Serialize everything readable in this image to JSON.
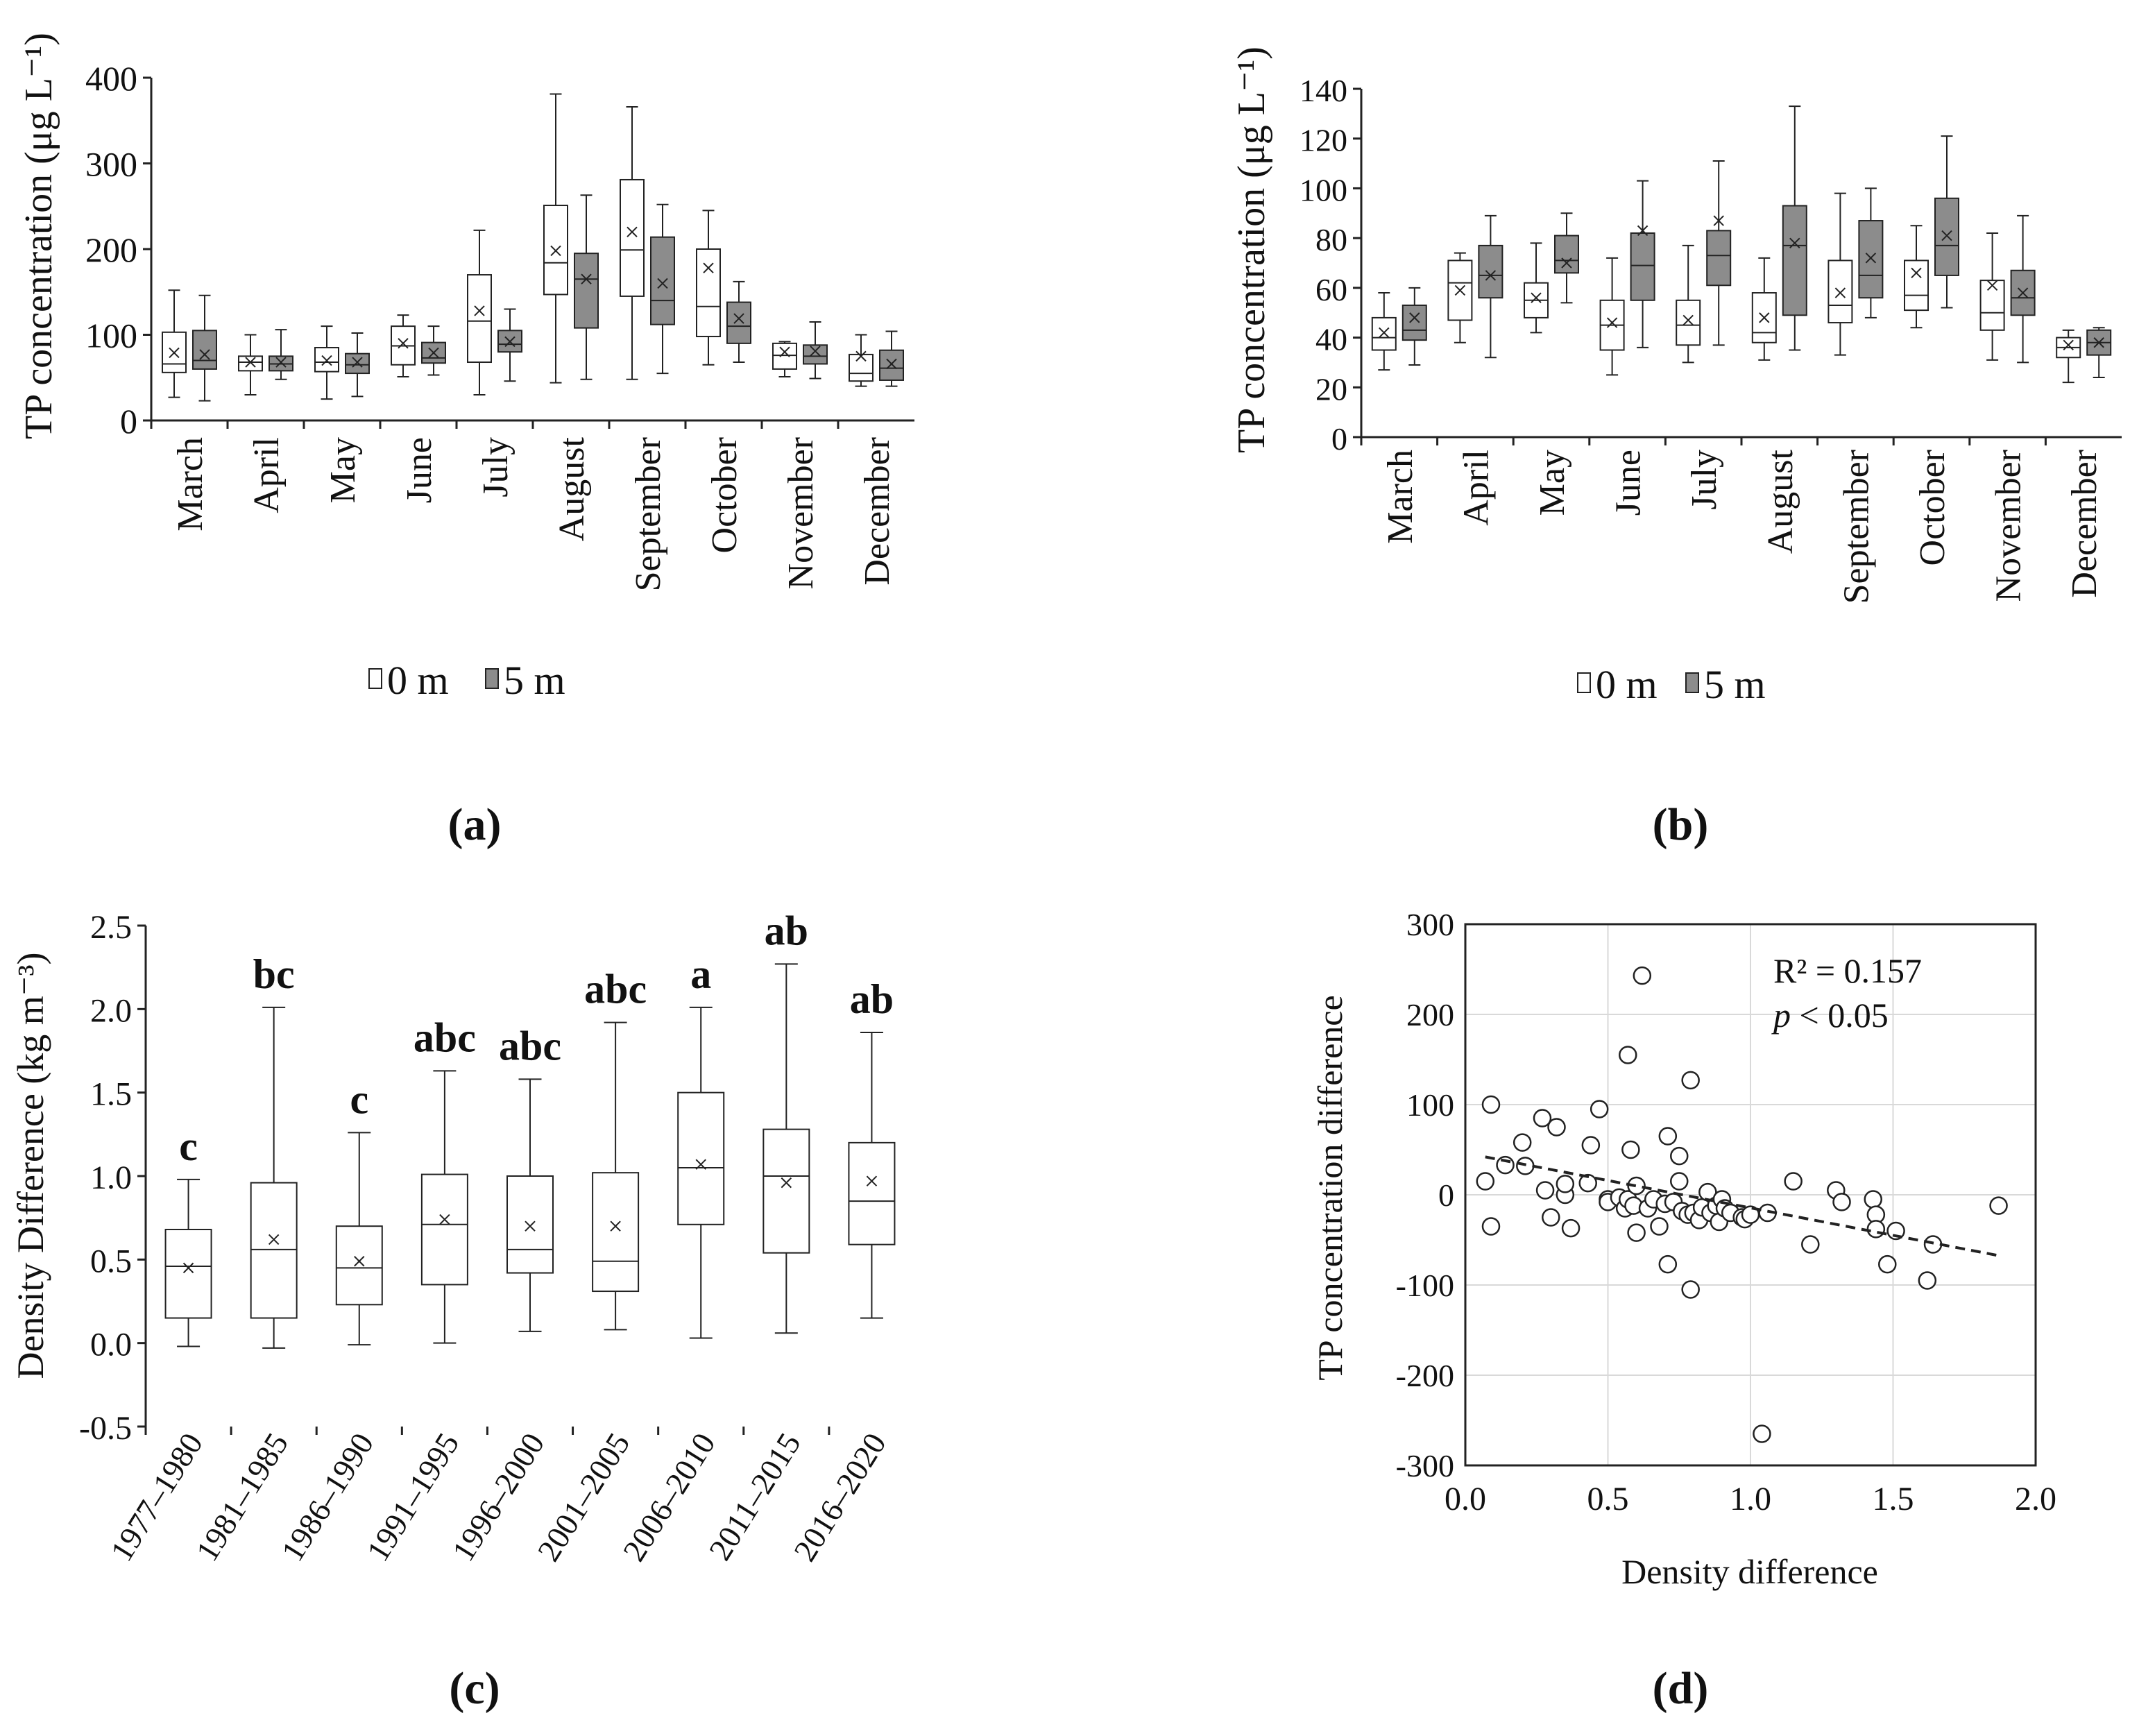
{
  "colors": {
    "box_white": "#ffffff",
    "box_gray": "#8c8c8c",
    "axis": "#222222",
    "grid": "#d9d9d9"
  },
  "chart_data": [
    {
      "id": "a",
      "type": "box",
      "panel_label": "(a)",
      "ylabel": "TP concentration (μg L⁻¹)",
      "ylim": [
        0,
        400
      ],
      "yticks": [
        0,
        100,
        200,
        300,
        400
      ],
      "categories": [
        "March",
        "April",
        "May",
        "June",
        "July",
        "August",
        "September",
        "October",
        "November",
        "December"
      ],
      "legend": [
        {
          "name": "0 m",
          "fill": "white"
        },
        {
          "name": "5 m",
          "fill": "gray"
        }
      ],
      "series": [
        {
          "name": "0 m",
          "boxes": [
            {
              "min": 27,
              "q1": 56,
              "median": 66,
              "q3": 103,
              "max": 152,
              "mean": 79
            },
            {
              "min": 30,
              "q1": 58,
              "median": 68,
              "q3": 75,
              "max": 100,
              "mean": 68
            },
            {
              "min": 25,
              "q1": 57,
              "median": 68,
              "q3": 85,
              "max": 110,
              "mean": 70
            },
            {
              "min": 51,
              "q1": 65,
              "median": 87,
              "q3": 110,
              "max": 123,
              "mean": 90
            },
            {
              "min": 30,
              "q1": 68,
              "median": 116,
              "q3": 170,
              "max": 222,
              "mean": 128
            },
            {
              "min": 44,
              "q1": 147,
              "median": 184,
              "q3": 251,
              "max": 381,
              "mean": 198
            },
            {
              "min": 48,
              "q1": 145,
              "median": 199,
              "q3": 281,
              "max": 366,
              "mean": 220
            },
            {
              "min": 65,
              "q1": 98,
              "median": 133,
              "q3": 200,
              "max": 245,
              "mean": 178
            },
            {
              "min": 51,
              "q1": 60,
              "median": 76,
              "q3": 90,
              "max": 92,
              "mean": 80
            },
            {
              "min": 40,
              "q1": 46,
              "median": 55,
              "q3": 77,
              "max": 100,
              "mean": 75
            }
          ]
        },
        {
          "name": "5 m",
          "boxes": [
            {
              "min": 23,
              "q1": 60,
              "median": 70,
              "q3": 105,
              "max": 146,
              "mean": 77
            },
            {
              "min": 48,
              "q1": 58,
              "median": 66,
              "q3": 75,
              "max": 106,
              "mean": 68
            },
            {
              "min": 28,
              "q1": 55,
              "median": 65,
              "q3": 78,
              "max": 102,
              "mean": 68
            },
            {
              "min": 53,
              "q1": 67,
              "median": 73,
              "q3": 91,
              "max": 110,
              "mean": 79
            },
            {
              "min": 46,
              "q1": 80,
              "median": 89,
              "q3": 105,
              "max": 130,
              "mean": 92
            },
            {
              "min": 48,
              "q1": 108,
              "median": 165,
              "q3": 195,
              "max": 263,
              "mean": 165
            },
            {
              "min": 55,
              "q1": 112,
              "median": 140,
              "q3": 214,
              "max": 252,
              "mean": 160
            },
            {
              "min": 68,
              "q1": 90,
              "median": 110,
              "q3": 138,
              "max": 162,
              "mean": 119
            },
            {
              "min": 49,
              "q1": 66,
              "median": 75,
              "q3": 88,
              "max": 115,
              "mean": 81
            },
            {
              "min": 40,
              "q1": 47,
              "median": 61,
              "q3": 82,
              "max": 104,
              "mean": 66
            }
          ]
        }
      ]
    },
    {
      "id": "b",
      "type": "box",
      "panel_label": "(b)",
      "ylabel": "TP concentration (μg L⁻¹)",
      "ylim": [
        0,
        140
      ],
      "yticks": [
        0,
        20,
        40,
        60,
        80,
        100,
        120,
        140
      ],
      "categories": [
        "March",
        "April",
        "May",
        "June",
        "July",
        "August",
        "September",
        "October",
        "November",
        "December"
      ],
      "legend": [
        {
          "name": "0 m",
          "fill": "white"
        },
        {
          "name": "5 m",
          "fill": "gray"
        }
      ],
      "series": [
        {
          "name": "0 m",
          "boxes": [
            {
              "min": 27,
              "q1": 35,
              "median": 40,
              "q3": 48,
              "max": 58,
              "mean": 42
            },
            {
              "min": 38,
              "q1": 47,
              "median": 62,
              "q3": 71,
              "max": 74,
              "mean": 59
            },
            {
              "min": 42,
              "q1": 48,
              "median": 55,
              "q3": 62,
              "max": 78,
              "mean": 56
            },
            {
              "min": 25,
              "q1": 35,
              "median": 45,
              "q3": 55,
              "max": 72,
              "mean": 46
            },
            {
              "min": 30,
              "q1": 37,
              "median": 45,
              "q3": 55,
              "max": 77,
              "mean": 47
            },
            {
              "min": 31,
              "q1": 38,
              "median": 42,
              "q3": 58,
              "max": 72,
              "mean": 48
            },
            {
              "min": 33,
              "q1": 46,
              "median": 53,
              "q3": 71,
              "max": 98,
              "mean": 58
            },
            {
              "min": 44,
              "q1": 51,
              "median": 57,
              "q3": 71,
              "max": 85,
              "mean": 66
            },
            {
              "min": 31,
              "q1": 43,
              "median": 50,
              "q3": 63,
              "max": 82,
              "mean": 61
            },
            {
              "min": 22,
              "q1": 32,
              "median": 36,
              "q3": 40,
              "max": 43,
              "mean": 37
            }
          ]
        },
        {
          "name": "5 m",
          "boxes": [
            {
              "min": 29,
              "q1": 39,
              "median": 43,
              "q3": 53,
              "max": 60,
              "mean": 48
            },
            {
              "min": 32,
              "q1": 56,
              "median": 65,
              "q3": 77,
              "max": 89,
              "mean": 65
            },
            {
              "min": 54,
              "q1": 66,
              "median": 71,
              "q3": 81,
              "max": 90,
              "mean": 70
            },
            {
              "min": 36,
              "q1": 55,
              "median": 69,
              "q3": 82,
              "max": 103,
              "mean": 83
            },
            {
              "min": 37,
              "q1": 61,
              "median": 73,
              "q3": 83,
              "max": 111,
              "mean": 87
            },
            {
              "min": 35,
              "q1": 49,
              "median": 77,
              "q3": 93,
              "max": 133,
              "mean": 78
            },
            {
              "min": 48,
              "q1": 56,
              "median": 65,
              "q3": 87,
              "max": 100,
              "mean": 72
            },
            {
              "min": 52,
              "q1": 65,
              "median": 77,
              "q3": 96,
              "max": 121,
              "mean": 81
            },
            {
              "min": 30,
              "q1": 49,
              "median": 56,
              "q3": 67,
              "max": 89,
              "mean": 58
            },
            {
              "min": 24,
              "q1": 33,
              "median": 38,
              "q3": 43,
              "max": 44,
              "mean": 38
            }
          ]
        }
      ]
    },
    {
      "id": "c",
      "type": "box",
      "panel_label": "(c)",
      "ylabel": "Density Difference (kg m⁻³)",
      "ylim": [
        -0.5,
        2.5
      ],
      "yticks": [
        -0.5,
        0.0,
        0.5,
        1.0,
        1.5,
        2.0,
        2.5
      ],
      "ytick_labels": [
        "-0.5",
        "0.0",
        "0.5",
        "1.0",
        "1.5",
        "2.0",
        "2.5"
      ],
      "categories": [
        "1977–1980",
        "1981–1985",
        "1986–1990",
        "1991–1995",
        "1996–2000",
        "2001–2005",
        "2006–2010",
        "2011–2015",
        "2016–2020"
      ],
      "letters": [
        "c",
        "bc",
        "c",
        "abc",
        "abc",
        "abc",
        "a",
        "ab",
        "ab"
      ],
      "series": [
        {
          "name": "density",
          "boxes": [
            {
              "min": -0.02,
              "q1": 0.15,
              "median": 0.46,
              "q3": 0.68,
              "max": 0.98,
              "mean": 0.45
            },
            {
              "min": -0.03,
              "q1": 0.15,
              "median": 0.56,
              "q3": 0.96,
              "max": 2.01,
              "mean": 0.62
            },
            {
              "min": -0.01,
              "q1": 0.23,
              "median": 0.45,
              "q3": 0.7,
              "max": 1.26,
              "mean": 0.49
            },
            {
              "min": 0.0,
              "q1": 0.35,
              "median": 0.71,
              "q3": 1.01,
              "max": 1.63,
              "mean": 0.74
            },
            {
              "min": 0.07,
              "q1": 0.42,
              "median": 0.56,
              "q3": 1.0,
              "max": 1.58,
              "mean": 0.7
            },
            {
              "min": 0.08,
              "q1": 0.31,
              "median": 0.49,
              "q3": 1.02,
              "max": 1.92,
              "mean": 0.7
            },
            {
              "min": 0.03,
              "q1": 0.71,
              "median": 1.05,
              "q3": 1.5,
              "max": 2.01,
              "mean": 1.07
            },
            {
              "min": 0.06,
              "q1": 0.54,
              "median": 1.0,
              "q3": 1.28,
              "max": 2.27,
              "mean": 0.96
            },
            {
              "min": 0.15,
              "q1": 0.59,
              "median": 0.85,
              "q3": 1.2,
              "max": 1.86,
              "mean": 0.97
            }
          ]
        }
      ]
    },
    {
      "id": "d",
      "type": "scatter",
      "panel_label": "(d)",
      "xlabel": "Density difference",
      "ylabel": "TP concentration difference",
      "xlim": [
        0,
        2
      ],
      "ylim": [
        -300,
        300
      ],
      "xticks": [
        0,
        0.5,
        1.0,
        1.5,
        2.0
      ],
      "xtick_labels": [
        "0.0",
        "0.5",
        "1.0",
        "1.5",
        "2.0"
      ],
      "yticks": [
        -300,
        -200,
        -100,
        0,
        100,
        200,
        300
      ],
      "grid": true,
      "annotation_r2": "R² = 0.157",
      "annotation_p_italic": "p",
      "annotation_p_rest": " < 0.05",
      "trendline": {
        "x": [
          0.07,
          1.88
        ],
        "y": [
          42,
          -68
        ]
      },
      "points": [
        [
          0.07,
          15
        ],
        [
          0.09,
          100
        ],
        [
          0.09,
          -35
        ],
        [
          0.14,
          33
        ],
        [
          0.2,
          58
        ],
        [
          0.21,
          32
        ],
        [
          0.27,
          85
        ],
        [
          0.28,
          5
        ],
        [
          0.3,
          -25
        ],
        [
          0.32,
          75
        ],
        [
          0.35,
          0
        ],
        [
          0.35,
          12
        ],
        [
          0.37,
          -37
        ],
        [
          0.43,
          13
        ],
        [
          0.44,
          55
        ],
        [
          0.47,
          95
        ],
        [
          0.5,
          -5
        ],
        [
          0.5,
          -8
        ],
        [
          0.54,
          -3
        ],
        [
          0.56,
          -15
        ],
        [
          0.57,
          155
        ],
        [
          0.57,
          -5
        ],
        [
          0.58,
          50
        ],
        [
          0.59,
          -12
        ],
        [
          0.6,
          10
        ],
        [
          0.6,
          -42
        ],
        [
          0.62,
          243
        ],
        [
          0.64,
          -15
        ],
        [
          0.66,
          -5
        ],
        [
          0.68,
          -35
        ],
        [
          0.7,
          -10
        ],
        [
          0.71,
          65
        ],
        [
          0.71,
          -77
        ],
        [
          0.73,
          -8
        ],
        [
          0.75,
          15
        ],
        [
          0.75,
          43
        ],
        [
          0.76,
          -18
        ],
        [
          0.78,
          -22
        ],
        [
          0.79,
          -105
        ],
        [
          0.79,
          127
        ],
        [
          0.8,
          -20
        ],
        [
          0.82,
          -28
        ],
        [
          0.83,
          -14
        ],
        [
          0.85,
          3
        ],
        [
          0.86,
          -20
        ],
        [
          0.88,
          -12
        ],
        [
          0.89,
          -30
        ],
        [
          0.9,
          -5
        ],
        [
          0.91,
          -15
        ],
        [
          0.93,
          -20
        ],
        [
          0.97,
          -25
        ],
        [
          0.98,
          -27
        ],
        [
          1.0,
          -22
        ],
        [
          1.04,
          -265
        ],
        [
          1.06,
          -20
        ],
        [
          1.15,
          15
        ],
        [
          1.21,
          -55
        ],
        [
          1.3,
          5
        ],
        [
          1.32,
          -8
        ],
        [
          1.43,
          -5
        ],
        [
          1.44,
          -22
        ],
        [
          1.44,
          -38
        ],
        [
          1.48,
          -77
        ],
        [
          1.51,
          -40
        ],
        [
          1.62,
          -95
        ],
        [
          1.64,
          -55
        ],
        [
          1.87,
          -12
        ]
      ]
    }
  ]
}
